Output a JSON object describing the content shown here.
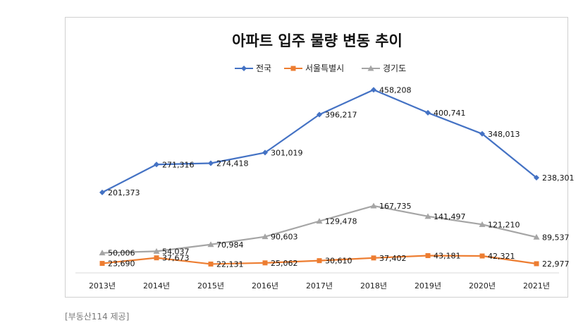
{
  "chart_data": {
    "type": "line",
    "title": "아파트 입주 물량 변동 추이",
    "xlabel": "",
    "ylabel": "",
    "legend_position": "top",
    "grid": false,
    "categories": [
      "2013년",
      "2014년",
      "2015년",
      "2016년",
      "2017년",
      "2018년",
      "2019년",
      "2020년",
      "2021년"
    ],
    "ylim": [
      0,
      480000
    ],
    "series": [
      {
        "name": "전국",
        "color": "#4472c4",
        "marker": "diamond",
        "values": [
          201373,
          271316,
          274418,
          301019,
          396217,
          458208,
          400741,
          348013,
          238301
        ],
        "labels": [
          "201,373",
          "271,316",
          "274,418",
          "301,019",
          "396,217",
          "458,208",
          "400,741",
          "348,013",
          "238,301"
        ]
      },
      {
        "name": "서울특별시",
        "color": "#ed7d31",
        "marker": "square",
        "values": [
          23690,
          37673,
          22131,
          25062,
          30610,
          37402,
          43181,
          42321,
          22977
        ],
        "labels": [
          "23,690",
          "37,673",
          "22,131",
          "25,062",
          "30,610",
          "37,402",
          "43,181",
          "42,321",
          "22,977"
        ]
      },
      {
        "name": "경기도",
        "color": "#a5a5a5",
        "marker": "triangle",
        "values": [
          50006,
          54037,
          70984,
          90603,
          129478,
          167735,
          141497,
          121210,
          89537
        ],
        "labels": [
          "50,006",
          "54,037",
          "70,984",
          "90,603",
          "129,478",
          "167,735",
          "141,497",
          "121,210",
          "89,537"
        ]
      }
    ]
  },
  "caption": "[부동산114 제공]"
}
